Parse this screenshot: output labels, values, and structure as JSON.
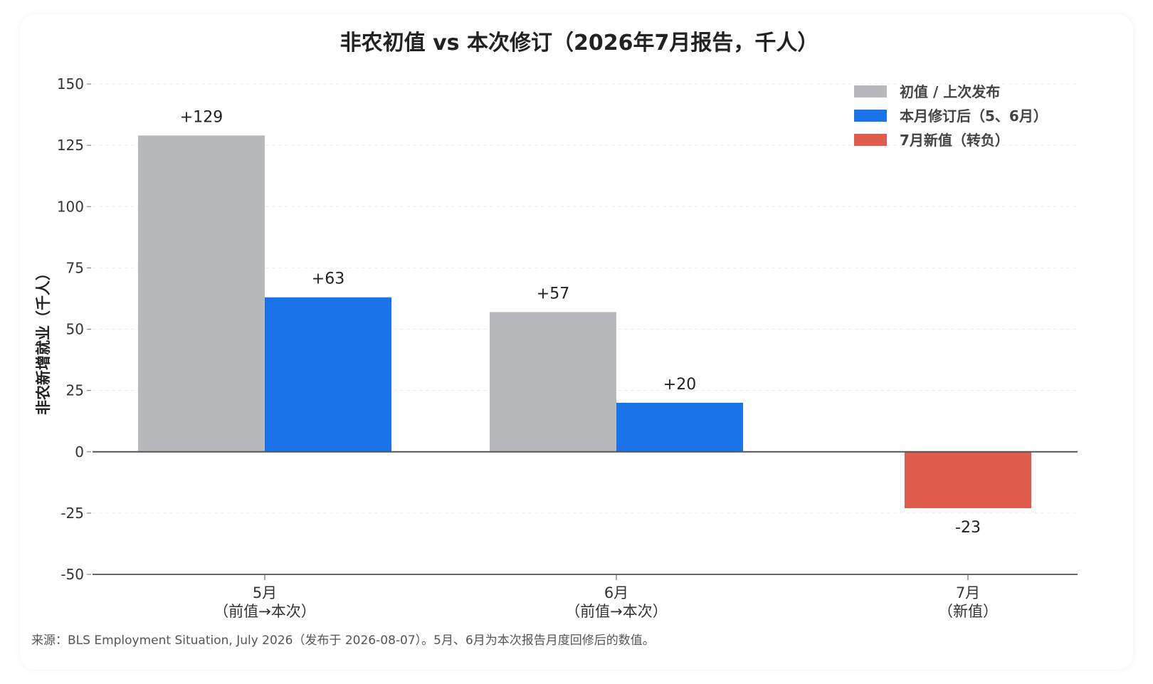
{
  "chart_data": {
    "type": "bar",
    "title": "非农初值 vs 本次修订（2026年7月报告，千人）",
    "ylabel": "非农新增就业（千人）",
    "xlabel": "",
    "ylim": [
      -50,
      150
    ],
    "yticks": [
      150,
      125,
      100,
      75,
      50,
      25,
      0,
      -25,
      -50
    ],
    "grid": true,
    "legend_position": "top-right",
    "categories": [
      [
        "5月",
        "（前值→本次）"
      ],
      [
        "6月",
        "（前值→本次）"
      ],
      [
        "7月",
        "（新值）"
      ]
    ],
    "series": [
      {
        "name": "初值 / 上次发布",
        "color": "#b8b9bd",
        "points": [
          {
            "category": 0,
            "value": 129,
            "label": "+129"
          },
          {
            "category": 1,
            "value": 57,
            "label": "+57"
          }
        ]
      },
      {
        "name": "本月修订后（5、6月）",
        "color": "#1a73e8",
        "points": [
          {
            "category": 0,
            "value": 63,
            "label": "+63"
          },
          {
            "category": 1,
            "value": 20,
            "label": "+20"
          }
        ]
      },
      {
        "name": "7月新值（转负）",
        "color": "#e05d4e",
        "points": [
          {
            "category": 2,
            "value": -23,
            "label": "-23"
          }
        ]
      }
    ],
    "source_note": "来源：BLS Employment Situation, July 2026（发布于 2026-08-07）。5月、6月为本次报告月度回修后的数值。"
  }
}
